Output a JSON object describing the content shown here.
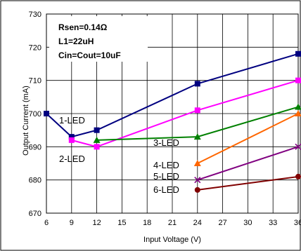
{
  "chart_data": {
    "type": "line",
    "title": "",
    "xlabel": "Input Voltage (V)",
    "ylabel": "Output Current (mA)",
    "xlim": [
      6,
      36
    ],
    "ylim": [
      670,
      730
    ],
    "x_ticks": [
      "6",
      "9",
      "12",
      "15",
      "18",
      "21",
      "24",
      "27",
      "30",
      "33",
      "36"
    ],
    "y_ticks": [
      "670",
      "680",
      "690",
      "700",
      "710",
      "720",
      "730"
    ],
    "grid": "horizontal and vertical",
    "annotations": [
      "Rsen=0.14Ω",
      "L1=22uH",
      "Cin=Cout=10uF"
    ],
    "series": [
      {
        "name": "1-LED",
        "color": "#000080",
        "marker": "square",
        "x": [
          6,
          9,
          12,
          24,
          36
        ],
        "y": [
          700,
          693,
          695,
          709,
          718
        ]
      },
      {
        "name": "2-LED",
        "color": "#ff00ff",
        "marker": "square",
        "x": [
          9,
          12,
          24,
          36
        ],
        "y": [
          692,
          690,
          701,
          710
        ]
      },
      {
        "name": "3-LED",
        "color": "#008000",
        "marker": "triangle",
        "x": [
          12,
          24,
          36
        ],
        "y": [
          692,
          693,
          702
        ]
      },
      {
        "name": "4-LED",
        "color": "#ff6600",
        "marker": "triangle",
        "x": [
          24,
          36
        ],
        "y": [
          685,
          700
        ]
      },
      {
        "name": "5-LED",
        "color": "#800080",
        "marker": "x",
        "x": [
          24,
          36
        ],
        "y": [
          680,
          690
        ]
      },
      {
        "name": "6-LED",
        "color": "#800000",
        "marker": "circle",
        "x": [
          24,
          36
        ],
        "y": [
          677,
          681
        ]
      }
    ]
  }
}
